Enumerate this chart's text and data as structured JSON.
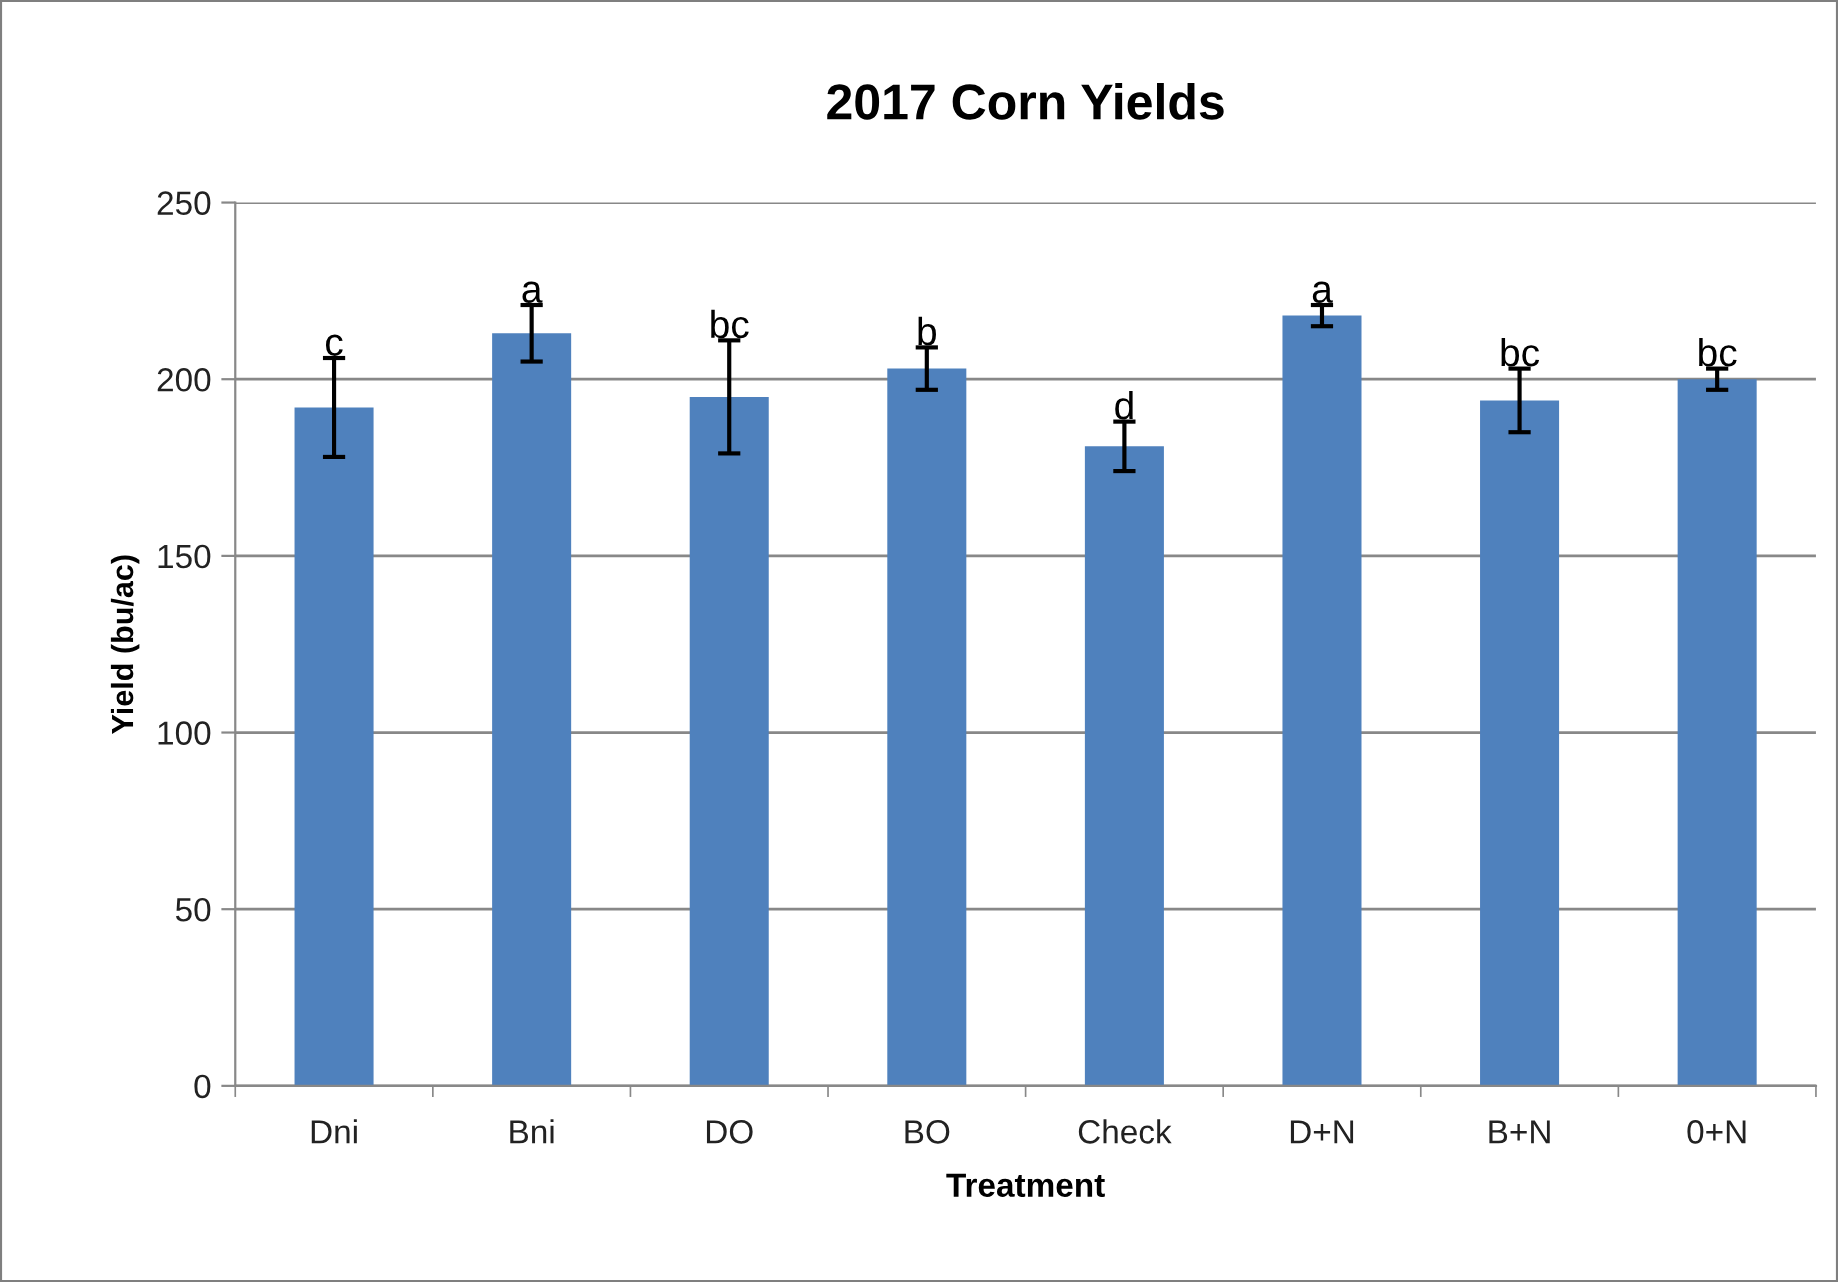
{
  "chart_data": {
    "type": "bar",
    "title": "2017 Corn Yields",
    "xlabel": "Treatment",
    "ylabel": "Yield (bu/ac)",
    "categories": [
      "Dni",
      "Bni",
      "DO",
      "BO",
      "Check",
      "D+N",
      "B+N",
      "0+N"
    ],
    "values": [
      192,
      213,
      195,
      203,
      181,
      218,
      194,
      200
    ],
    "errors": [
      14,
      8,
      16,
      6,
      7,
      3,
      9,
      3
    ],
    "color": "#4f81bd",
    "ylim": [
      0,
      250
    ],
    "yticks": [
      0,
      50,
      100,
      150,
      200,
      250
    ],
    "grid": "y",
    "legend": false,
    "annotations": [
      {
        "text": "c",
        "x": "Dni",
        "y": 206
      },
      {
        "text": "a",
        "x": "Bni",
        "y": 221
      },
      {
        "text": "bc",
        "x": "DO",
        "y": 211
      },
      {
        "text": "b",
        "x": "BO",
        "y": 209
      },
      {
        "text": "d",
        "x": "Check",
        "y": 188
      },
      {
        "text": "a",
        "x": "D+N",
        "y": 221
      },
      {
        "text": "bc",
        "x": "B+N",
        "y": 203
      },
      {
        "text": "bc",
        "x": "0+N",
        "y": 203
      }
    ]
  }
}
